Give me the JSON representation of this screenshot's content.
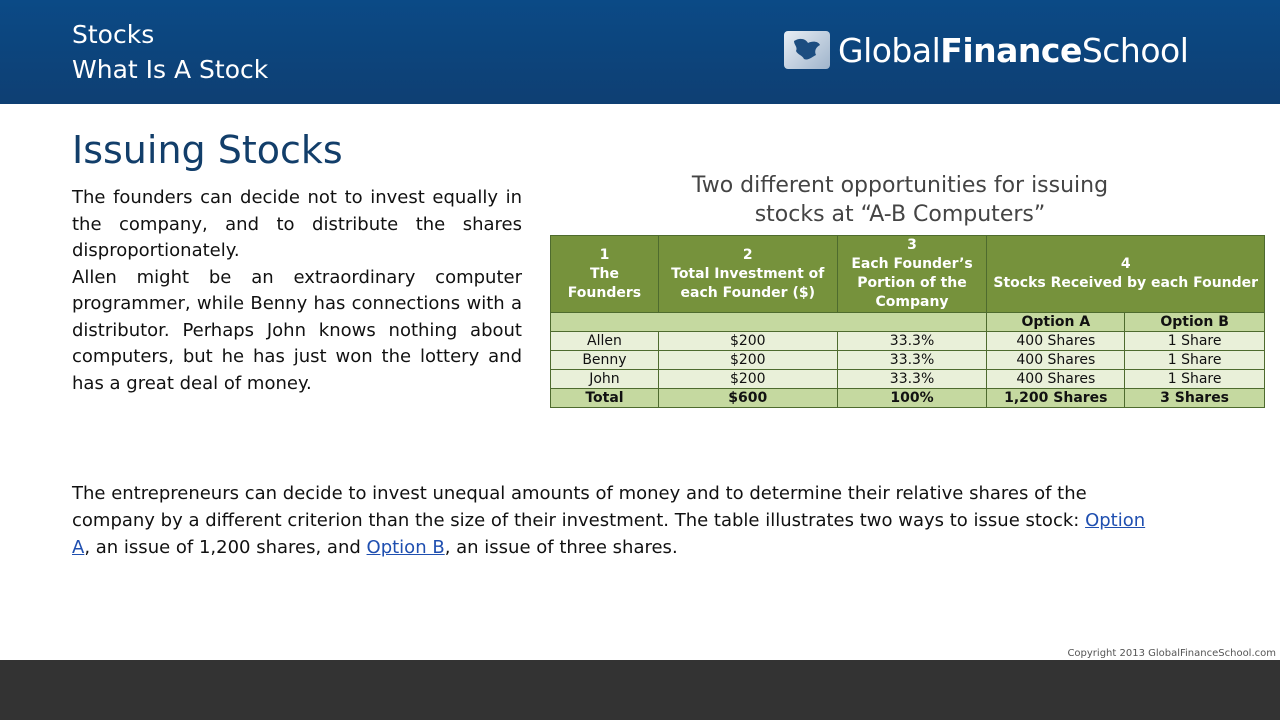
{
  "header": {
    "line1": "Stocks",
    "line2": "What Is A Stock",
    "logo": {
      "part1": "Global",
      "part2": "Finance",
      "part3": "School",
      "icon": "globe-icon"
    }
  },
  "title": "Issuing Stocks",
  "left_paragraphs": [
    "The founders can decide not to invest equally in the company, and to distribute the shares disproportionately.",
    "Allen might be an extraordinary computer programmer, while Benny has connections with a distributor. Perhaps John knows nothing about computers, but he has just won the lottery and has a great deal of money."
  ],
  "table": {
    "title_line1": "Two different opportunities for issuing",
    "title_line2": "stocks at “A-B Computers”",
    "headers": [
      {
        "num": "1",
        "label": "The Founders"
      },
      {
        "num": "2",
        "label": "Total Investment of each Founder ($)"
      },
      {
        "num": "3",
        "label": "Each Founder’s Portion of the Company"
      },
      {
        "num": "4",
        "label": "Stocks Received by each Founder"
      }
    ],
    "subheaders": [
      "Option A",
      "Option B"
    ],
    "rows": [
      [
        "Allen",
        "$200",
        "33.3%",
        "400 Shares",
        "1 Share"
      ],
      [
        "Benny",
        "$200",
        "33.3%",
        "400 Shares",
        "1 Share"
      ],
      [
        "John",
        "$200",
        "33.3%",
        "400 Shares",
        "1 Share"
      ]
    ],
    "total": [
      "Total",
      "$600",
      "100%",
      "1,200 Shares",
      "3 Shares"
    ]
  },
  "bottom": {
    "text1": "The entrepreneurs can decide to invest unequal amounts of money and to determine their relative shares of the company by a different criterion than the size of their investment. The table illustrates two ways to issue stock: ",
    "link_a": "Option A",
    "text2": ", an issue of 1,200 shares, and ",
    "link_b": "Option B",
    "text3": ", an issue of three shares."
  },
  "copyright": "Copyright 2013 GlobalFinanceSchool.com",
  "colors": {
    "header_bg": "#0e3f73",
    "table_header": "#76923c",
    "table_light": "#e9f0d9",
    "table_mid": "#c5d9a0",
    "footer": "#333333",
    "link": "#1f4fb0"
  }
}
